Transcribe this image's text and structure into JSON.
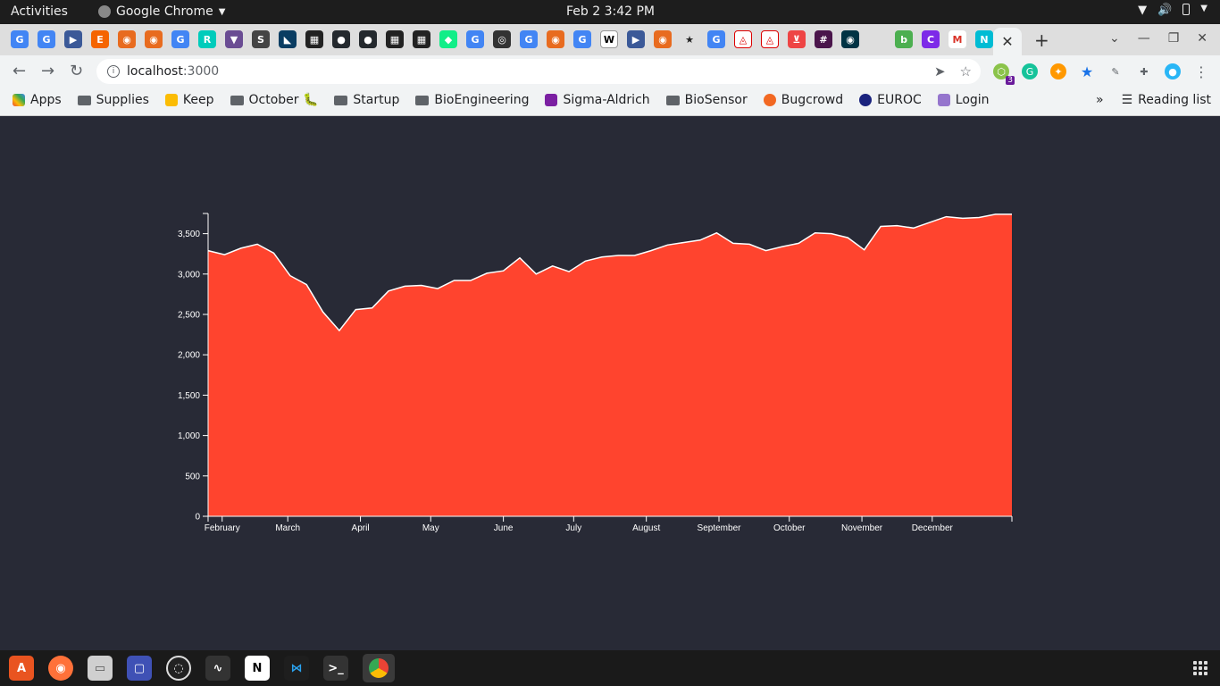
{
  "topbar": {
    "activities_label": "Activities",
    "app_name": "Google Chrome",
    "datetime": "Feb 2  3:42 PM"
  },
  "browser": {
    "url_host": "localhost",
    "url_port": ":3000",
    "tab_close_glyph": "✕",
    "new_tab_glyph": "+",
    "extension_badge": "3"
  },
  "bookmarks": {
    "items": [
      {
        "label": "Apps",
        "icon": "apps-grid-icon"
      },
      {
        "label": "Supplies",
        "icon": "folder-icon"
      },
      {
        "label": "Keep",
        "icon": "keep-icon"
      },
      {
        "label": "October 🐛",
        "icon": "folder-icon"
      },
      {
        "label": "Startup",
        "icon": "folder-icon"
      },
      {
        "label": "BioEngineering",
        "icon": "folder-icon"
      },
      {
        "label": "Sigma-Aldrich",
        "icon": "sigma-aldrich-icon"
      },
      {
        "label": "BioSensor",
        "icon": "folder-icon"
      },
      {
        "label": "Bugcrowd",
        "icon": "bugcrowd-icon"
      },
      {
        "label": "EUROC",
        "icon": "euroc-icon"
      },
      {
        "label": "Login",
        "icon": "login-icon"
      }
    ],
    "overflow": "»",
    "reading_list": "Reading list"
  },
  "chart_data": {
    "type": "area",
    "colors": {
      "fill": "#ff442e",
      "stroke": "#ffffff",
      "axis": "#ffffff"
    },
    "title": "",
    "xlabel": "",
    "ylabel": "",
    "ylim": [
      0,
      3750
    ],
    "y_ticks": [
      0,
      500,
      1000,
      1500,
      2000,
      2500,
      3000,
      3500
    ],
    "y_tick_labels": [
      "0",
      "500",
      "1,000",
      "1,500",
      "2,000",
      "2,500",
      "3,000",
      "3,500"
    ],
    "x_tick_labels": [
      "February",
      "March",
      "April",
      "May",
      "June",
      "July",
      "August",
      "September",
      "October",
      "November",
      "December"
    ],
    "x_tick_dates": [
      "2021-02-01",
      "2021-03-01",
      "2021-04-01",
      "2021-05-01",
      "2021-06-01",
      "2021-07-01",
      "2021-08-01",
      "2021-09-01",
      "2021-10-01",
      "2021-11-01",
      "2021-12-01"
    ],
    "x_domain": [
      "2021-01-26",
      "2022-01-04"
    ],
    "x": [
      "2021-01-26",
      "2021-02-02",
      "2021-02-09",
      "2021-02-16",
      "2021-02-23",
      "2021-03-02",
      "2021-03-09",
      "2021-03-16",
      "2021-03-23",
      "2021-03-30",
      "2021-04-06",
      "2021-04-13",
      "2021-04-20",
      "2021-04-27",
      "2021-05-04",
      "2021-05-11",
      "2021-05-18",
      "2021-05-25",
      "2021-06-01",
      "2021-06-08",
      "2021-06-15",
      "2021-06-22",
      "2021-06-29",
      "2021-07-06",
      "2021-07-13",
      "2021-07-20",
      "2021-07-27",
      "2021-08-03",
      "2021-08-10",
      "2021-08-17",
      "2021-08-24",
      "2021-08-31",
      "2021-09-07",
      "2021-09-14",
      "2021-09-21",
      "2021-09-28",
      "2021-10-05",
      "2021-10-12",
      "2021-10-19",
      "2021-10-26",
      "2021-11-02",
      "2021-11-09",
      "2021-11-16",
      "2021-11-23",
      "2021-11-30",
      "2021-12-07",
      "2021-12-14",
      "2021-12-21",
      "2021-12-28",
      "2022-01-04"
    ],
    "values": [
      3290,
      3240,
      3320,
      3370,
      3260,
      2980,
      2870,
      2530,
      2300,
      2560,
      2580,
      2790,
      2850,
      2860,
      2820,
      2920,
      2920,
      3010,
      3040,
      3200,
      3000,
      3100,
      3030,
      3160,
      3210,
      3230,
      3230,
      3290,
      3360,
      3390,
      3420,
      3510,
      3380,
      3370,
      3290,
      3340,
      3380,
      3510,
      3500,
      3450,
      3300,
      3590,
      3600,
      3570,
      3640,
      3710,
      3690,
      3700,
      3740,
      3740
    ]
  },
  "dock": {
    "items": [
      "ubuntu-software-icon",
      "firefox-icon",
      "files-icon",
      "screenshot-icon",
      "obs-icon",
      "system-monitor-icon",
      "notion-icon",
      "vscode-icon",
      "terminal-icon",
      "chrome-icon"
    ]
  }
}
